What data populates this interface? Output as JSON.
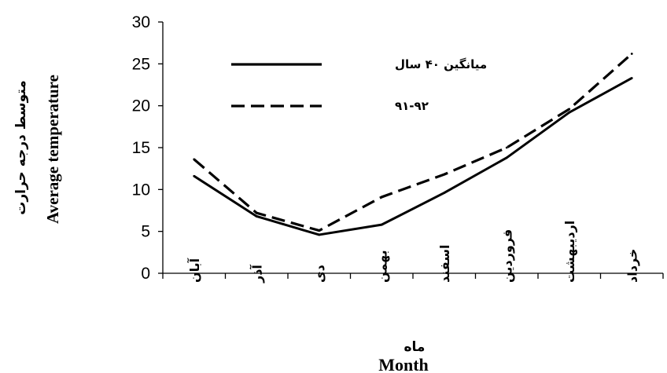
{
  "chart_data": {
    "type": "line",
    "categories": [
      "آبان",
      "آذر",
      "دی",
      "بهمن",
      "اسفند",
      "فروردین",
      "اردیبهشت",
      "خرداد"
    ],
    "series": [
      {
        "name": "میانگین ۴۰ سال",
        "style": "solid",
        "values": [
          11.6,
          6.8,
          4.6,
          5.8,
          9.6,
          13.8,
          19.2,
          23.3
        ]
      },
      {
        "name": "۹۱-۹۲",
        "style": "dashed",
        "values": [
          13.6,
          7.2,
          5.1,
          9.1,
          11.8,
          15.0,
          19.6,
          26.2
        ]
      }
    ],
    "ylim": [
      0,
      30
    ],
    "yticks": [
      "0",
      "5",
      "10",
      "15",
      "20",
      "25",
      "30"
    ],
    "ylabel_fa": "متوسط درجه حرارت",
    "ylabel_en": "Average temperature",
    "xlabel_fa": "ماه",
    "xlabel_en": "Month",
    "grid": false,
    "legend_position": "top-left",
    "line_color": "#000000"
  }
}
